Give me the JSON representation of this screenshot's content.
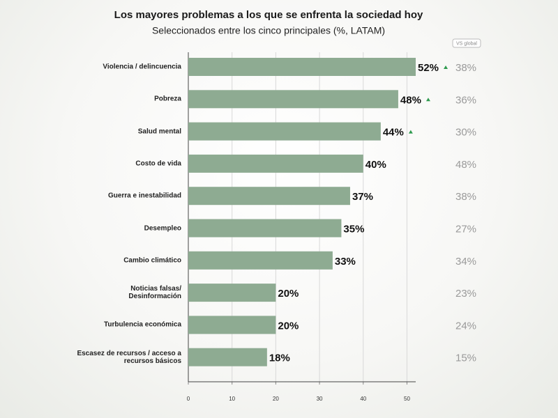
{
  "chart_data": {
    "type": "bar",
    "orientation": "horizontal",
    "title": "Los mayores problemas a los que se enfrenta la sociedad hoy",
    "subtitle": "Seleccionados entre los cinco principales (%, LATAM)",
    "categories": [
      "Violencia / delincuencia",
      "Pobreza",
      "Salud mental",
      "Costo de vida",
      "Guerra e inestabilidad",
      "Desempleo",
      "Cambio climático",
      "Noticias falsas/ Desinformación",
      "Turbulencia económica",
      "Escasez de recursos / acceso a recursos básicos"
    ],
    "series": [
      {
        "name": "LATAM",
        "color": "#8eab92",
        "values": [
          52,
          48,
          44,
          40,
          37,
          35,
          33,
          20,
          20,
          18
        ],
        "value_labels": [
          "52%",
          "48%",
          "44%",
          "40%",
          "37%",
          "35%",
          "33%",
          "20%",
          "20%",
          "18%"
        ],
        "trend": [
          "up",
          "up",
          "up",
          null,
          null,
          null,
          null,
          null,
          null,
          null
        ]
      },
      {
        "name": "VS global",
        "color": "#9a9a9a",
        "values": [
          38,
          36,
          30,
          48,
          38,
          27,
          34,
          23,
          24,
          15
        ],
        "value_labels": [
          "38%",
          "36%",
          "30%",
          "48%",
          "38%",
          "27%",
          "34%",
          "23%",
          "24%",
          "15%"
        ]
      }
    ],
    "xlim": [
      0,
      52
    ],
    "xticks": [
      0,
      10,
      20,
      30,
      40,
      50
    ],
    "grid": true,
    "trend_color": "#2e9a4e"
  }
}
